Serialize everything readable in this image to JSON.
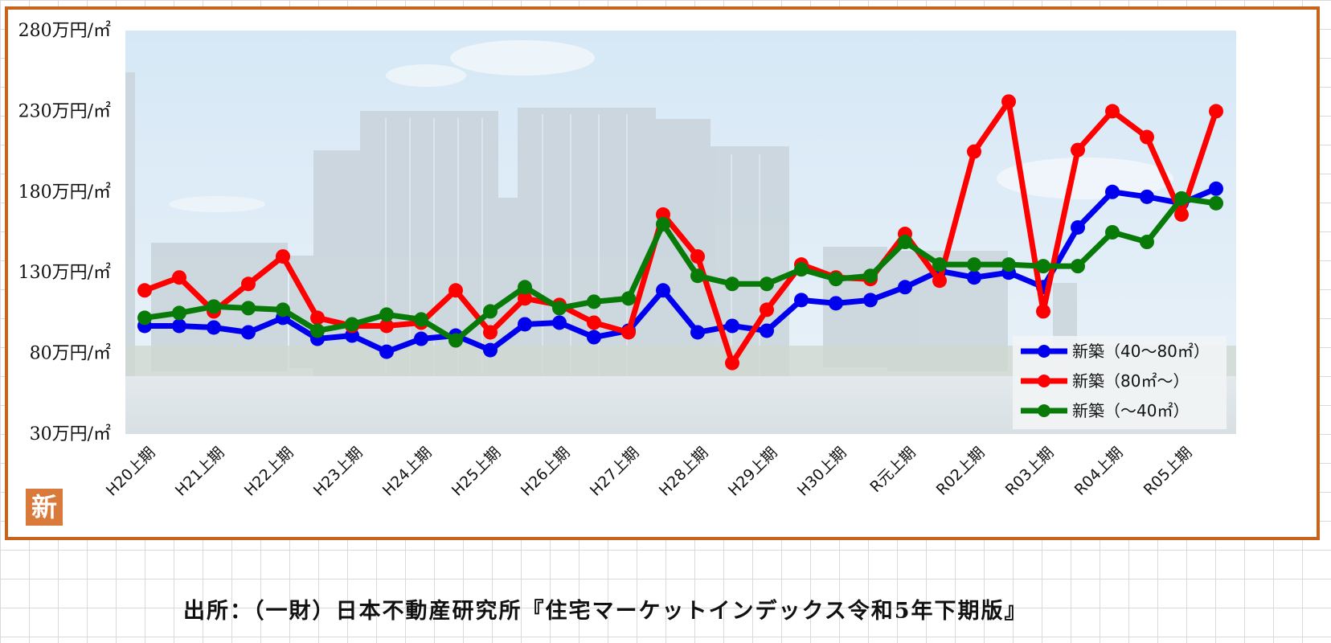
{
  "source_note": "出所：（一財）日本不動産研究所『住宅マーケットインデックス令和5年下期版』",
  "badge_label": "新",
  "colors": {
    "frame": "#c8631c",
    "blue": "#0000ee",
    "red": "#ff0000",
    "green": "#087a08",
    "sky": "#dcebf7",
    "water": "#dfe6ea"
  },
  "chart_data": {
    "type": "line",
    "title": "",
    "xlabel": "",
    "ylabel": "",
    "ylim": [
      30,
      280
    ],
    "y_ticks": [
      "30万円/㎡",
      "80万円/㎡",
      "130万円/㎡",
      "180万円/㎡",
      "230万円/㎡",
      "280万円/㎡"
    ],
    "x_tick_labels": [
      "H20上期",
      "H21上期",
      "H22上期",
      "H23上期",
      "H24上期",
      "H25上期",
      "H26上期",
      "H27上期",
      "H28上期",
      "H29上期",
      "H30上期",
      "R元上期",
      "R02上期",
      "R03上期",
      "R04上期",
      "R05上期"
    ],
    "legend_position": "bottom-right",
    "grid": false,
    "series": [
      {
        "name": "新築（40～80㎡）",
        "color": "#0000ee",
        "values": [
          97,
          97,
          96,
          93,
          102,
          89,
          91,
          81,
          89,
          91,
          82,
          98,
          99,
          90,
          94,
          119,
          93,
          97,
          94,
          113,
          111,
          113,
          121,
          131,
          127,
          130,
          121,
          158,
          180,
          177,
          173,
          182
        ]
      },
      {
        "name": "新築（80㎡～）",
        "color": "#ff0000",
        "values": [
          119,
          127,
          106,
          123,
          140,
          102,
          97,
          97,
          99,
          119,
          93,
          114,
          110,
          99,
          93,
          166,
          140,
          74,
          107,
          135,
          127,
          126,
          154,
          125,
          205,
          236,
          106,
          206,
          230,
          214,
          166,
          230
        ]
      },
      {
        "name": "新築（～40㎡）",
        "color": "#087a08",
        "values": [
          102,
          105,
          109,
          108,
          107,
          94,
          98,
          104,
          101,
          88,
          106,
          121,
          108,
          112,
          114,
          160,
          128,
          123,
          123,
          132,
          126,
          128,
          149,
          135,
          135,
          135,
          134,
          134,
          155,
          149,
          176,
          173
        ]
      }
    ]
  }
}
